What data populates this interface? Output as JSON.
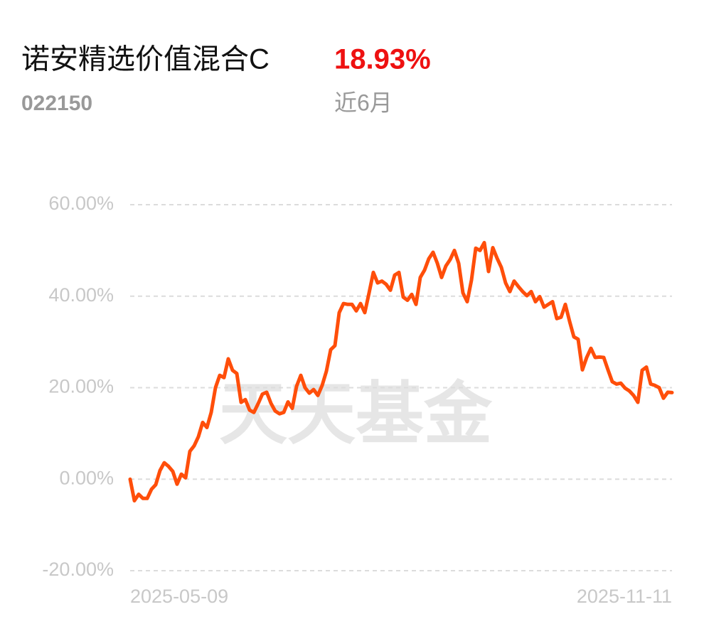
{
  "header": {
    "title": "诺安精选价值混合C",
    "return": "18.93%",
    "code": "022150",
    "period": "近6月"
  },
  "chart_data": {
    "type": "line",
    "watermark": "天天基金",
    "categories": [
      "2025-05-09",
      null,
      null,
      null,
      null,
      null,
      null,
      null,
      null,
      null,
      null,
      null,
      null,
      null,
      null,
      null,
      null,
      null,
      null,
      null,
      null,
      null,
      null,
      null,
      null,
      null,
      null,
      null,
      null,
      null,
      null,
      null,
      null,
      null,
      null,
      null,
      null,
      null,
      null,
      null,
      null,
      null,
      null,
      null,
      null,
      null,
      null,
      null,
      null,
      null,
      null,
      null,
      null,
      null,
      null,
      null,
      null,
      null,
      null,
      null,
      null,
      null,
      null,
      null,
      null,
      null,
      null,
      null,
      null,
      null,
      null,
      null,
      null,
      null,
      null,
      null,
      null,
      null,
      null,
      null,
      null,
      null,
      null,
      null,
      null,
      null,
      null,
      null,
      null,
      null,
      null,
      null,
      null,
      null,
      null,
      null,
      null,
      null,
      null,
      null,
      null,
      null,
      null,
      null,
      null,
      null,
      null,
      null,
      null,
      null,
      null,
      null,
      null,
      null,
      null,
      null,
      null,
      null,
      null,
      null,
      null,
      null,
      null,
      null,
      null,
      null,
      null,
      "2025-11-11"
    ],
    "series": [
      {
        "name": "诺安精选价值混合C",
        "color": "#ff4e0a",
        "values": [
          0,
          -4.7,
          -3.3,
          -4.2,
          -4.2,
          -2.2,
          -1.2,
          1.9,
          3.6,
          2.8,
          1.7,
          -1.1,
          1.1,
          0.3,
          6.1,
          7.3,
          9.3,
          12.4,
          11.3,
          14.6,
          20.0,
          22.7,
          22.2,
          26.3,
          23.8,
          23.1,
          16.8,
          17.4,
          15.1,
          14.6,
          16.5,
          18.6,
          19.0,
          16.6,
          14.9,
          14.3,
          14.6,
          16.9,
          15.5,
          20.3,
          22.7,
          20.0,
          18.8,
          19.6,
          18.3,
          20.5,
          23.6,
          28.3,
          29.2,
          36.4,
          38.4,
          38.2,
          38.2,
          36.8,
          38.4,
          36.4,
          40.7,
          45.2,
          42.9,
          43.3,
          42.6,
          41.3,
          44.6,
          45.2,
          39.8,
          39.1,
          40.4,
          38.2,
          44.1,
          45.7,
          48.2,
          49.6,
          47.2,
          44.1,
          46.6,
          48.0,
          50.0,
          47.2,
          40.7,
          38.8,
          43.5,
          50.5,
          50.0,
          51.7,
          45.4,
          50.6,
          48.3,
          46.3,
          42.9,
          41.0,
          43.3,
          42.1,
          41.0,
          40.1,
          41.0,
          38.8,
          39.9,
          37.6,
          38.2,
          38.8,
          35.1,
          35.4,
          38.2,
          34.5,
          31.1,
          30.6,
          23.9,
          26.6,
          28.6,
          26.6,
          26.7,
          26.6,
          23.9,
          21.3,
          20.8,
          21.0,
          19.9,
          19.3,
          18.3,
          16.8,
          23.8,
          24.5,
          20.8,
          20.5,
          20.0,
          17.7,
          19.0,
          18.93
        ]
      }
    ],
    "ylim": [
      -20,
      60
    ],
    "yticks": [
      {
        "value": -20,
        "label": "-20.00%"
      },
      {
        "value": 0,
        "label": "0.00%"
      },
      {
        "value": 20,
        "label": "20.00%"
      },
      {
        "value": 40,
        "label": "40.00%"
      },
      {
        "value": 60,
        "label": "60.00%"
      }
    ],
    "grid": true
  }
}
